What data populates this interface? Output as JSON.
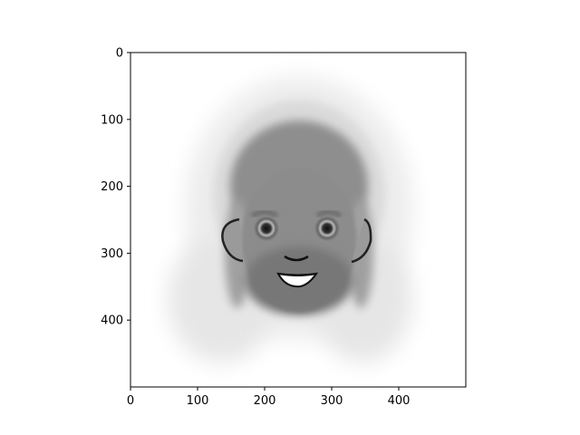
{
  "chart_data": {
    "type": "heatmap",
    "title": "",
    "xlabel": "",
    "ylabel": "",
    "xlim": [
      0,
      500
    ],
    "ylim": [
      500,
      0
    ],
    "x_ticks": [
      0,
      100,
      200,
      300,
      400
    ],
    "y_ticks": [
      0,
      100,
      200,
      300,
      400
    ],
    "colormap": "grayscale",
    "image_description": "Grayscale averaged cartoon face with beard and smile"
  }
}
